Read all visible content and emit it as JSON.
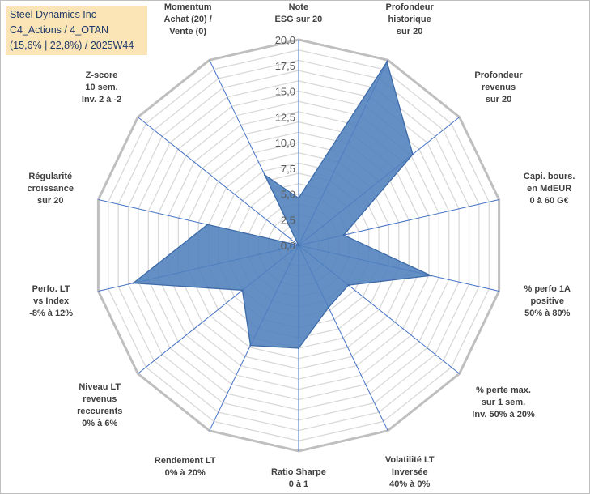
{
  "title": {
    "lines": [
      "Steel Dynamics Inc",
      "C4_Actions / 4_OTAN",
      "(15,6% | 22,8%) / 2025W44"
    ]
  },
  "colors": {
    "fill": "#4f7fbd",
    "stroke": "#3d6ba8",
    "spokes": "#4472c4",
    "grid": "#d9d9d9",
    "outer": "#bfbfbf",
    "title_bg": "#fbe5b6",
    "title_text": "#1f3a68"
  },
  "chart_data": {
    "type": "radar",
    "title": "Steel Dynamics Inc",
    "rlim": [
      0,
      20
    ],
    "tick_step": 2.5,
    "tick_labels": [
      "0,0",
      "2,5",
      "5,0",
      "7,5",
      "10,0",
      "12,5",
      "15,0",
      "17,5",
      "20,0"
    ],
    "categories": [
      {
        "name": "note-esg",
        "lines": [
          "Note",
          "ESG sur 20"
        ]
      },
      {
        "name": "profondeur-historique",
        "lines": [
          "Profondeur",
          "historique",
          "sur 20"
        ]
      },
      {
        "name": "profondeur-revenus",
        "lines": [
          "Profondeur",
          "revenus",
          "sur 20"
        ]
      },
      {
        "name": "capi-bours",
        "lines": [
          "Capi. bours.",
          "en MdEUR",
          "0 à 60 G€"
        ]
      },
      {
        "name": "perfo-1a-positive",
        "lines": [
          "% perfo 1A",
          "positive",
          "50% à 80%"
        ]
      },
      {
        "name": "perte-max",
        "lines": [
          "% perte max.",
          "sur 1 sem.",
          "Inv. 50% à 20%"
        ]
      },
      {
        "name": "volatilite-lt",
        "lines": [
          "Volatilité LT",
          "Inversée",
          "40% à 0%"
        ]
      },
      {
        "name": "ratio-sharpe",
        "lines": [
          "Ratio Sharpe",
          "0 à 1"
        ]
      },
      {
        "name": "rendement-lt",
        "lines": [
          "Rendement LT",
          "0% à 20%"
        ]
      },
      {
        "name": "niveau-lt-revenus",
        "lines": [
          "Niveau LT",
          "revenus",
          "reccurents",
          "0% à 6%"
        ]
      },
      {
        "name": "perfo-lt-vs-index",
        "lines": [
          "Perfo. LT",
          "vs Index",
          "-8% à 12%"
        ]
      },
      {
        "name": "regularite-croissance",
        "lines": [
          "Régularité",
          "croissance",
          "sur 20"
        ]
      },
      {
        "name": "z-score",
        "lines": [
          "Z-score",
          "10 sem.",
          "Inv. 2 à -2"
        ]
      },
      {
        "name": "momentum",
        "lines": [
          "Momentum",
          "Achat (20) /",
          "Vente (0)"
        ]
      }
    ],
    "series": [
      {
        "name": "Steel Dynamics Inc",
        "values": [
          4.6,
          19.8,
          14.2,
          4.5,
          13.2,
          6.2,
          6.7,
          10.0,
          10.8,
          7.0,
          16.5,
          9.1,
          0.0,
          7.6
        ]
      }
    ]
  }
}
